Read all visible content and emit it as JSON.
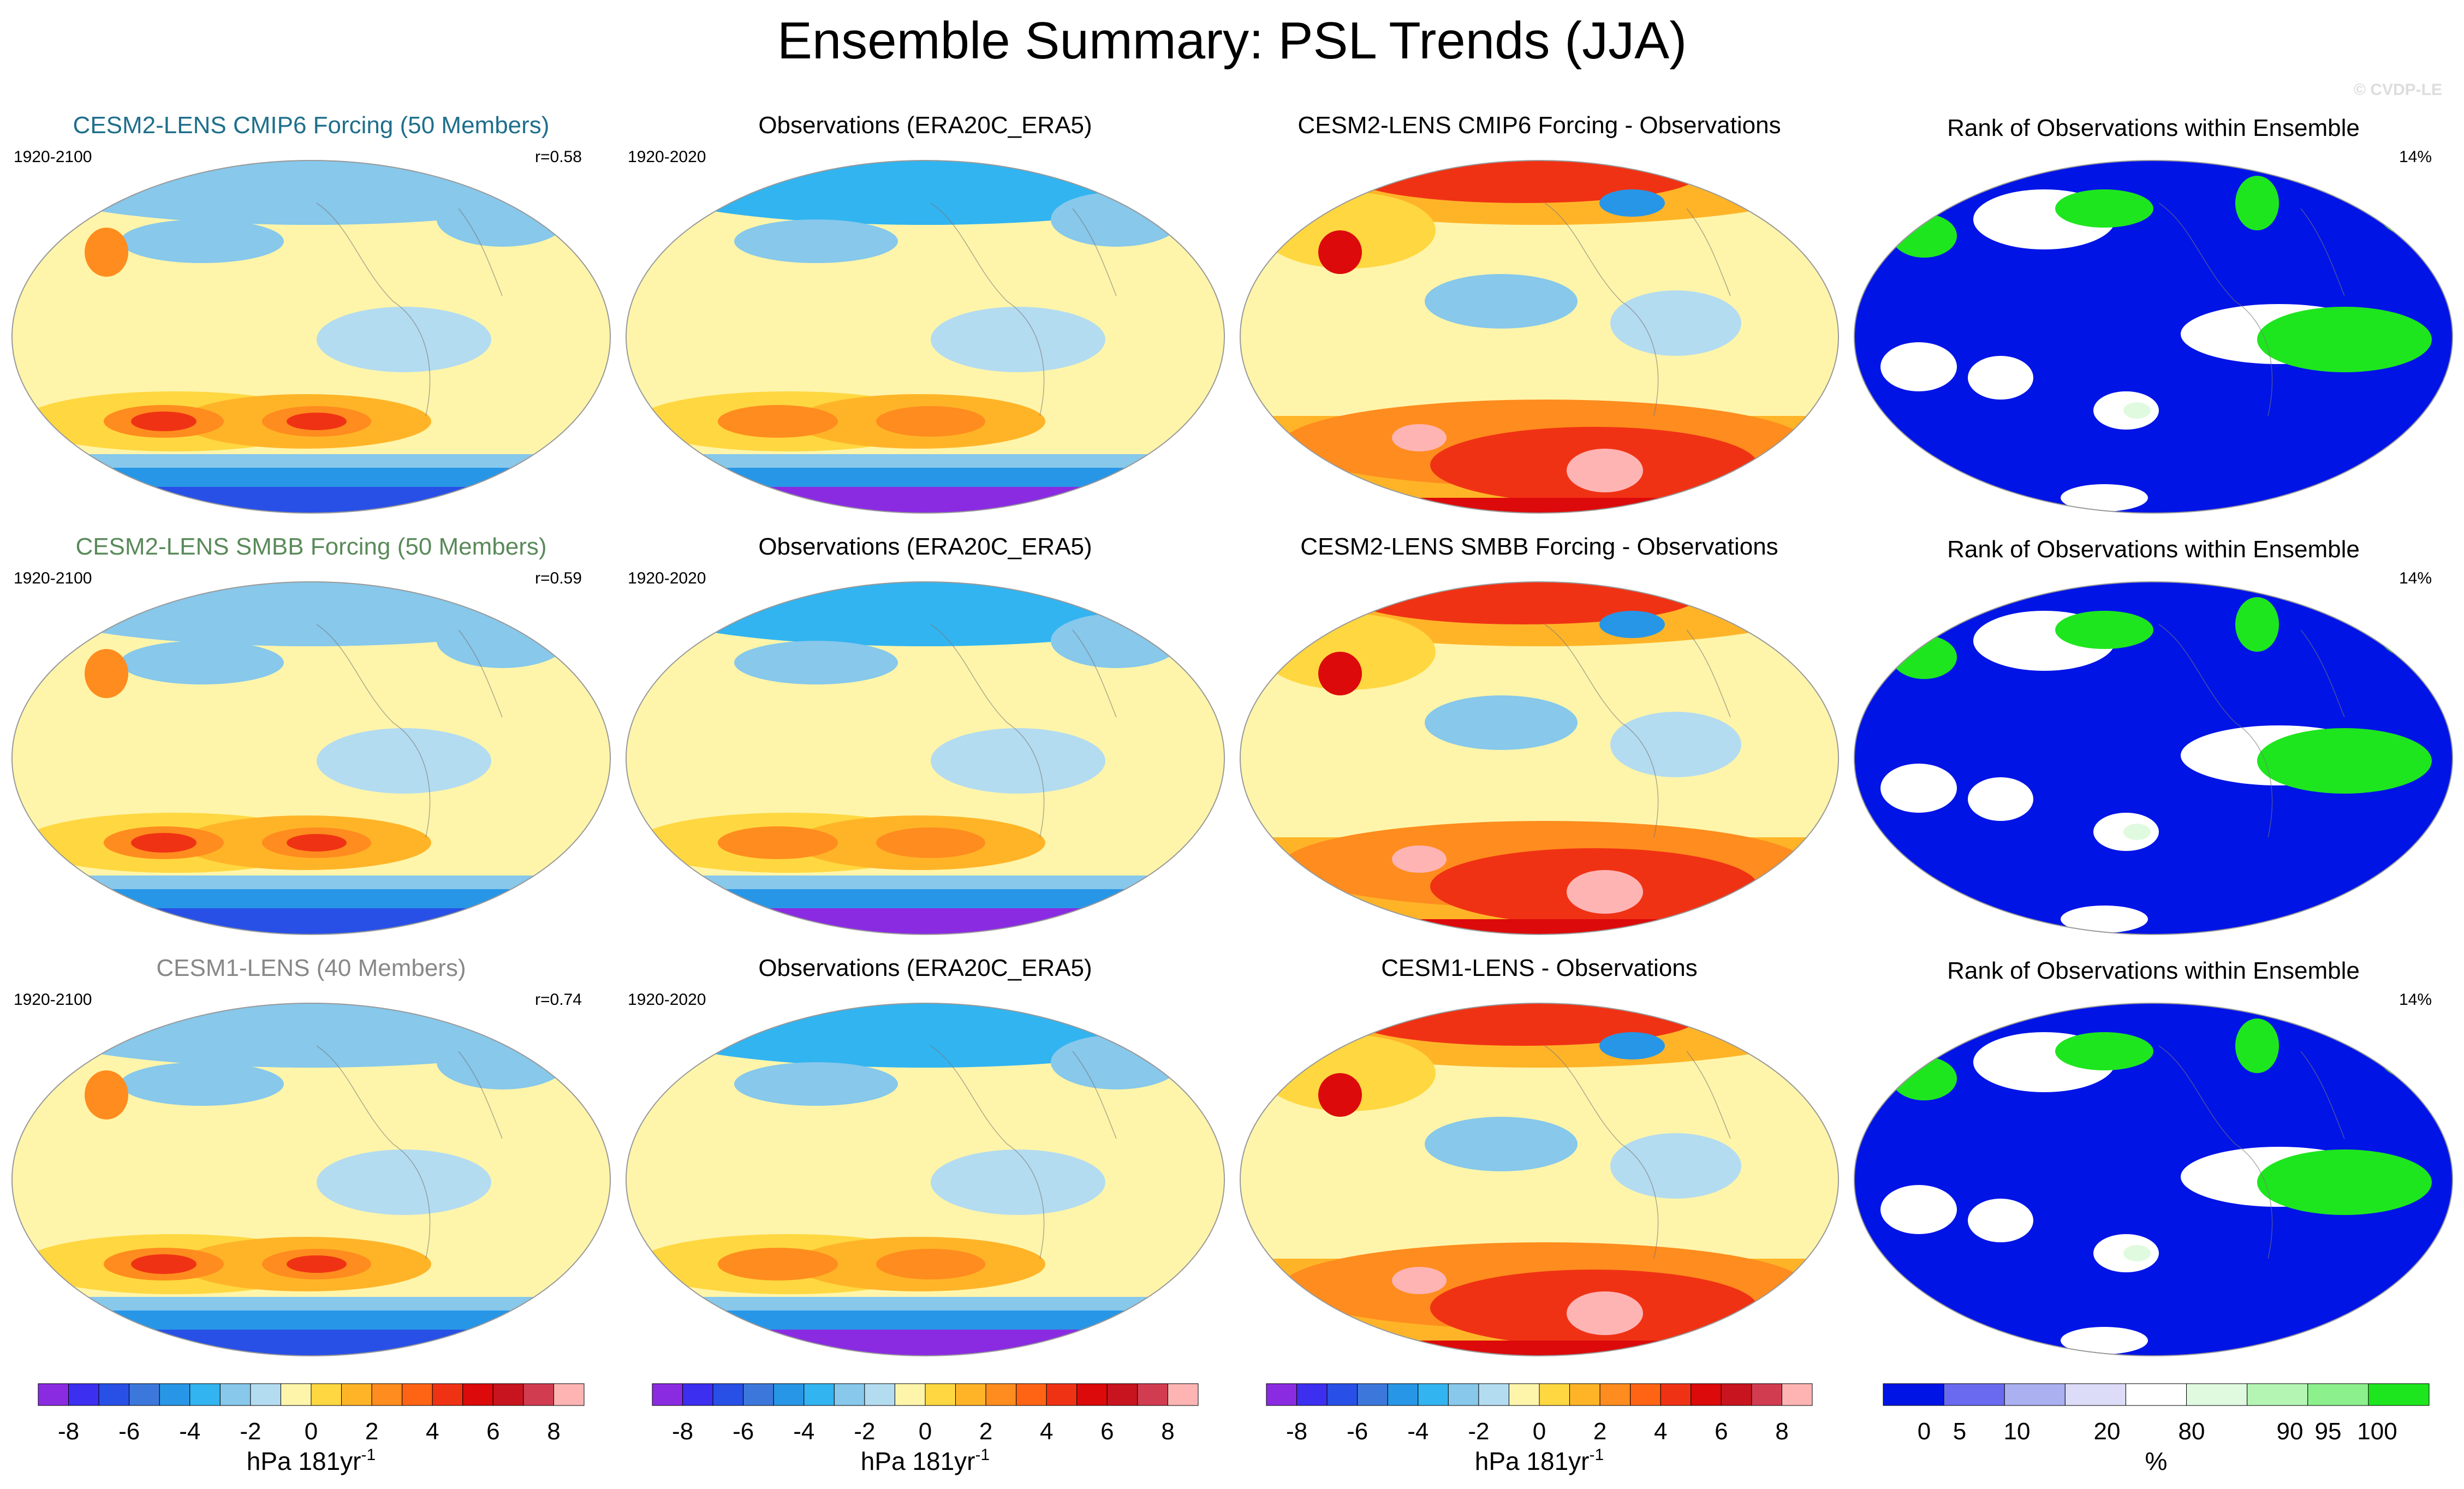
{
  "title": "Ensemble Summary: PSL Trends (JJA)",
  "credit": "© CVDP-LE",
  "rows": [
    {
      "model_title": "CESM2-LENS CMIP6 Forcing (50 Members)",
      "model_title_color": "#1f6f8b",
      "model_period": "1920-2100",
      "pattern_corr": "r=0.58",
      "obs_title": "Observations (ERA20C_ERA5)",
      "obs_period": "1920-2020",
      "diff_title": "CESM2-LENS CMIP6 Forcing - Observations",
      "rank_title": "Rank of Observations within Ensemble",
      "rank_pct": "14%"
    },
    {
      "model_title": "CESM2-LENS SMBB Forcing (50 Members)",
      "model_title_color": "#5a8a5a",
      "model_period": "1920-2100",
      "pattern_corr": "r=0.59",
      "obs_title": "Observations (ERA20C_ERA5)",
      "obs_period": "1920-2020",
      "diff_title": "CESM2-LENS SMBB Forcing - Observations",
      "rank_title": "Rank of Observations within Ensemble",
      "rank_pct": "14%"
    },
    {
      "model_title": "CESM1-LENS (40 Members)",
      "model_title_color": "#888888",
      "model_period": "1920-2100",
      "pattern_corr": "r=0.74",
      "obs_title": "Observations (ERA20C_ERA5)",
      "obs_period": "1920-2020",
      "diff_title": "CESM1-LENS - Observations",
      "rank_title": "Rank of Observations within Ensemble",
      "rank_pct": "14%"
    }
  ],
  "colorbars": [
    {
      "unit": "hPa 181yr",
      "unit_superscript": "-1",
      "tick_labels": [
        "-8",
        "-6",
        "-4",
        "-2",
        "0",
        "2",
        "4",
        "6",
        "8"
      ],
      "colors": [
        "#8a2be2",
        "#3c2ff0",
        "#2850e6",
        "#3c78dc",
        "#2896e6",
        "#32b4f0",
        "#87c8eb",
        "#b4dcf0",
        "#fff5aa",
        "#ffd740",
        "#ffb428",
        "#ff8c1e",
        "#ff6414",
        "#f03214",
        "#dc0a0a",
        "#c8141e",
        "#d23c50",
        "#ffb4b4"
      ]
    },
    {
      "unit": "hPa 181yr",
      "unit_superscript": "-1",
      "tick_labels": [
        "-8",
        "-6",
        "-4",
        "-2",
        "0",
        "2",
        "4",
        "6",
        "8"
      ],
      "colors": [
        "#8a2be2",
        "#3c2ff0",
        "#2850e6",
        "#3c78dc",
        "#2896e6",
        "#32b4f0",
        "#87c8eb",
        "#b4dcf0",
        "#fff5aa",
        "#ffd740",
        "#ffb428",
        "#ff8c1e",
        "#ff6414",
        "#f03214",
        "#dc0a0a",
        "#c8141e",
        "#d23c50",
        "#ffb4b4"
      ]
    },
    {
      "unit": "hPa 181yr",
      "unit_superscript": "-1",
      "tick_labels": [
        "-8",
        "-6",
        "-4",
        "-2",
        "0",
        "2",
        "4",
        "6",
        "8"
      ],
      "colors": [
        "#8a2be2",
        "#3c2ff0",
        "#2850e6",
        "#3c78dc",
        "#2896e6",
        "#32b4f0",
        "#87c8eb",
        "#b4dcf0",
        "#fff5aa",
        "#ffd740",
        "#ffb428",
        "#ff8c1e",
        "#ff6414",
        "#f03214",
        "#dc0a0a",
        "#c8141e",
        "#d23c50",
        "#ffb4b4"
      ]
    },
    {
      "unit": "%",
      "tick_labels": [
        "0",
        "5",
        "10",
        "20",
        "80",
        "90",
        "95",
        "100"
      ],
      "colors": [
        "#0014e6",
        "#6a6af0",
        "#aab0f0",
        "#dcdcf8",
        "#ffffff",
        "#e0fae0",
        "#b4f5b4",
        "#8cf08c",
        "#1ee61e"
      ]
    }
  ],
  "chart_data": {
    "type": "heatmap",
    "description_units": "hPa 181yr-1 (trend maps), % (rank maps)",
    "projection": "Robinson, global, centered on Pacific",
    "grid": "3 rows x 4 columns",
    "columns": [
      "Model ensemble mean trend",
      "Observations trend",
      "Model minus Observations",
      "Rank of Observations within Ensemble"
    ],
    "trend_levels": [
      -8,
      -7,
      -6,
      -5,
      -4,
      -3,
      -2,
      -1,
      0,
      1,
      2,
      3,
      4,
      5,
      6,
      7,
      8
    ],
    "rank_levels": [
      0,
      5,
      10,
      20,
      80,
      90,
      95,
      100
    ],
    "pattern_correlations": [
      0.58,
      0.59,
      0.74
    ],
    "rank_percent": [
      14,
      14,
      14
    ]
  }
}
